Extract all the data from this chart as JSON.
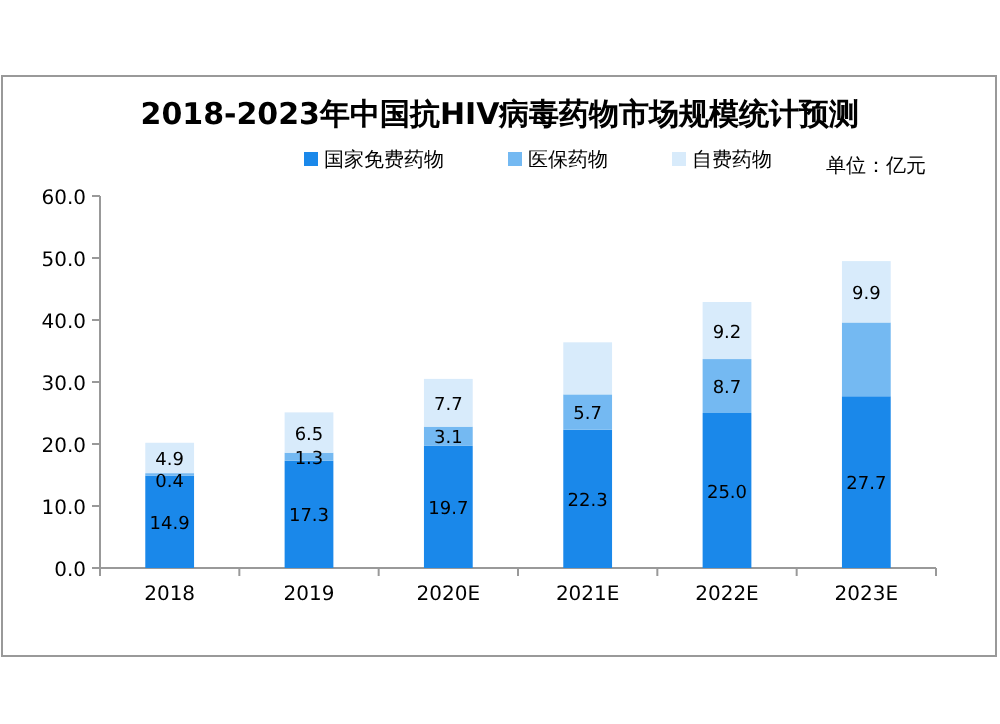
{
  "chart_data": {
    "type": "bar",
    "stacked": true,
    "title": "2018-2023年中国抗HIV病毒药物市场规模统计预测",
    "annotations": [
      "单位：亿元"
    ],
    "categories": [
      "2018",
      "2019",
      "2020E",
      "2021E",
      "2022E",
      "2023E"
    ],
    "series": [
      {
        "name": "国家免费药物",
        "color": "#1a88ea",
        "values": [
          14.9,
          17.3,
          19.7,
          22.3,
          25.0,
          27.7
        ],
        "value_labels": [
          "14.9",
          "17.3",
          "19.7",
          "22.3",
          "25.0",
          "27.7"
        ]
      },
      {
        "name": "医保药物",
        "color": "#74b9f2",
        "values": [
          0.4,
          1.3,
          3.1,
          5.7,
          8.7,
          11.9
        ],
        "value_labels": [
          "0.4",
          "1.3",
          "3.1",
          "5.7",
          "8.7",
          null
        ]
      },
      {
        "name": "自费药物",
        "color": "#d8ebfb",
        "values": [
          4.9,
          6.5,
          7.7,
          8.4,
          9.2,
          9.9
        ],
        "value_labels": [
          "4.9",
          "6.5",
          "7.7",
          null,
          "9.2",
          "9.9"
        ]
      }
    ],
    "ylim": [
      0,
      60
    ],
    "yticks": [
      {
        "value": 0,
        "label": "0.0"
      },
      {
        "value": 10,
        "label": "10.0"
      },
      {
        "value": 20,
        "label": "20.0"
      },
      {
        "value": 30,
        "label": "30.0"
      },
      {
        "value": 40,
        "label": "40.0"
      },
      {
        "value": 50,
        "label": "50.0"
      },
      {
        "value": 60,
        "label": "60.0"
      }
    ],
    "legend": "top"
  }
}
